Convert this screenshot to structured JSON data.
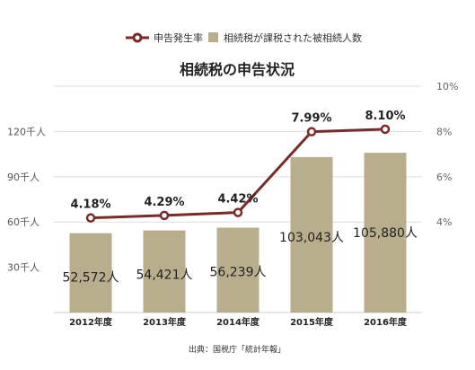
{
  "chart_data": {
    "type": "bar",
    "title": "相続税の申告状況",
    "categories": [
      "2012年度",
      "2013年度",
      "2014年度",
      "2015年度",
      "2016年度"
    ],
    "series": [
      {
        "name": "相続税が課税された被相続人数",
        "type": "bar",
        "axis": "left",
        "values": [
          52572,
          54421,
          56239,
          103043,
          105880
        ],
        "labels": [
          "52,572人",
          "54,421人",
          "56,239人",
          "103,043人",
          "105,880人"
        ],
        "color": "#b8ad8c"
      },
      {
        "name": "申告発生率",
        "type": "line",
        "axis": "right",
        "values": [
          4.18,
          4.29,
          4.42,
          7.99,
          8.1
        ],
        "labels": [
          "4.18%",
          "4.29%",
          "4.42%",
          "7.99%",
          "8.10%"
        ],
        "color": "#7b2a2a"
      }
    ],
    "y_left": {
      "ticks": [
        30000,
        60000,
        90000,
        120000
      ],
      "tick_labels": [
        "30千人",
        "60千人",
        "90千人",
        "120千人"
      ],
      "range": [
        0,
        150000
      ]
    },
    "y_right": {
      "ticks": [
        4,
        6,
        8,
        10
      ],
      "tick_labels": [
        "4%",
        "6%",
        "8%",
        "10%"
      ],
      "range": [
        0,
        10
      ]
    },
    "grid": true,
    "legend_position": "top-center",
    "source": "出典：国税庁「統計年報」"
  }
}
